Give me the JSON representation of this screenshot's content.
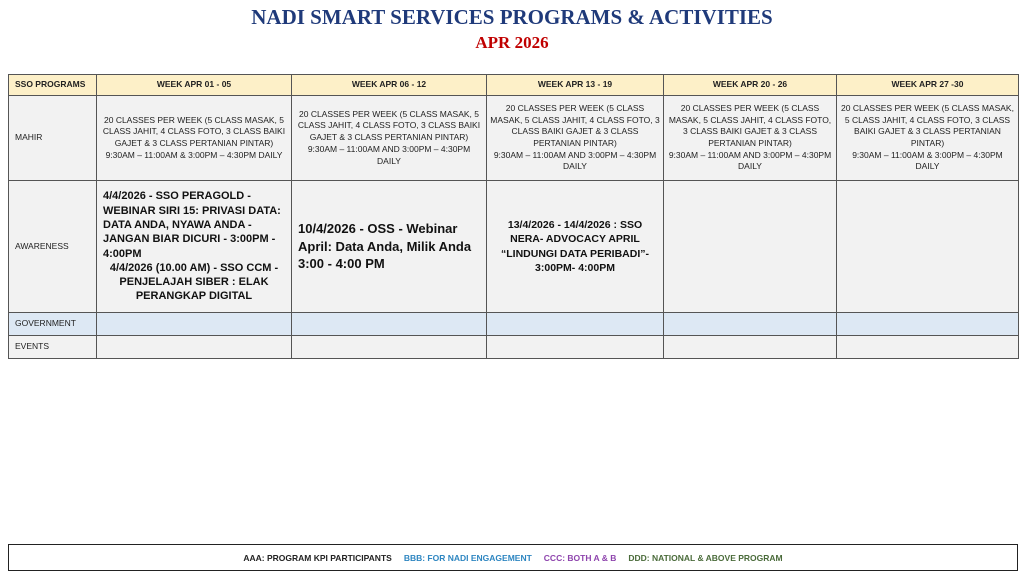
{
  "header": {
    "title": "NADI SMART SERVICES PROGRAMS & ACTIVITIES",
    "subtitle": "APR 2026"
  },
  "table": {
    "columns": [
      "SSO PROGRAMS",
      "WEEK APR  01 - 05",
      "WEEK APR  06 - 12",
      "WEEK APR 13 - 19",
      "WEEK APR  20 - 26",
      "WEEK APR 27 -30"
    ],
    "rows": {
      "mahir": {
        "label": "MAHIR",
        "cells": [
          "20 CLASSES PER WEEK (5 CLASS MASAK, 5 CLASS JAHIT, 4 CLASS FOTO, 3 CLASS BAIKI GAJET & 3 CLASS PERTANIAN PINTAR)",
          "20 CLASSES PER WEEK (5 CLASS MASAK, 5 CLASS JAHIT, 4 CLASS FOTO, 3 CLASS BAIKI GAJET & 3 CLASS PERTANIAN PINTAR)",
          "20 CLASSES PER WEEK (5 CLASS MASAK, 5 CLASS JAHIT, 4 CLASS FOTO, 3 CLASS BAIKI GAJET & 3 CLASS PERTANIAN PINTAR)",
          "20 CLASSES PER WEEK (5 CLASS MASAK, 5 CLASS JAHIT, 4 CLASS FOTO, 3 CLASS BAIKI GAJET & 3 CLASS PERTANIAN PINTAR)",
          "20 CLASSES PER WEEK (5 CLASS MASAK, 5 CLASS JAHIT, 4 CLASS FOTO, 3 CLASS BAIKI GAJET & 3 CLASS PERTANIAN PINTAR)"
        ],
        "times": [
          "9:30AM – 11:00AM & 3:00PM – 4:30PM DAILY",
          "9:30AM – 11:00AM AND 3:00PM – 4:30PM DAILY",
          "9:30AM – 11:00AM AND 3:00PM – 4:30PM DAILY",
          "9:30AM – 11:00AM AND 3:00PM – 4:30PM DAILY",
          "9:30AM – 11:00AM & 3:00PM – 4:30PM DAILY"
        ]
      },
      "awareness": {
        "label": "AWARENESS",
        "week1_a": "4/4/2026 - SSO PERAGOLD - WEBINAR SIRI 15:  PRIVASI DATA: DATA ANDA, NYAWA ANDA - JANGAN BIAR DICURI  - 3:00PM - 4:00PM",
        "week1_b": "4/4/2026 (10.00 AM) - SSO CCM - PENJELAJAH SIBER : ELAK PERANGKAP DIGITAL",
        "week2": "10/4/2026 - OSS - Webinar April: Data Anda, Milik Anda 3:00 - 4:00 PM",
        "week3": "13/4/2026 - 14/4/2026 : SSO NERA- ADVOCACY APRIL “LINDUNGI DATA PERIBADI”- 3:00PM- 4:00PM"
      },
      "government": {
        "label": "GOVERNMENT"
      },
      "events": {
        "label": "EVENTS"
      }
    }
  },
  "legend": [
    {
      "text": "AAA: PROGRAM  KPI PARTICIPANTS",
      "color": "#222222"
    },
    {
      "text": "BBB:  FOR NADI ENGAGEMENT",
      "color": "#2e86c1"
    },
    {
      "text": "CCC:  BOTH  A & B",
      "color": "#8e44ad"
    },
    {
      "text": "DDD: NATIONAL & ABOVE PROGRAM",
      "color": "#4a6b3a"
    }
  ]
}
